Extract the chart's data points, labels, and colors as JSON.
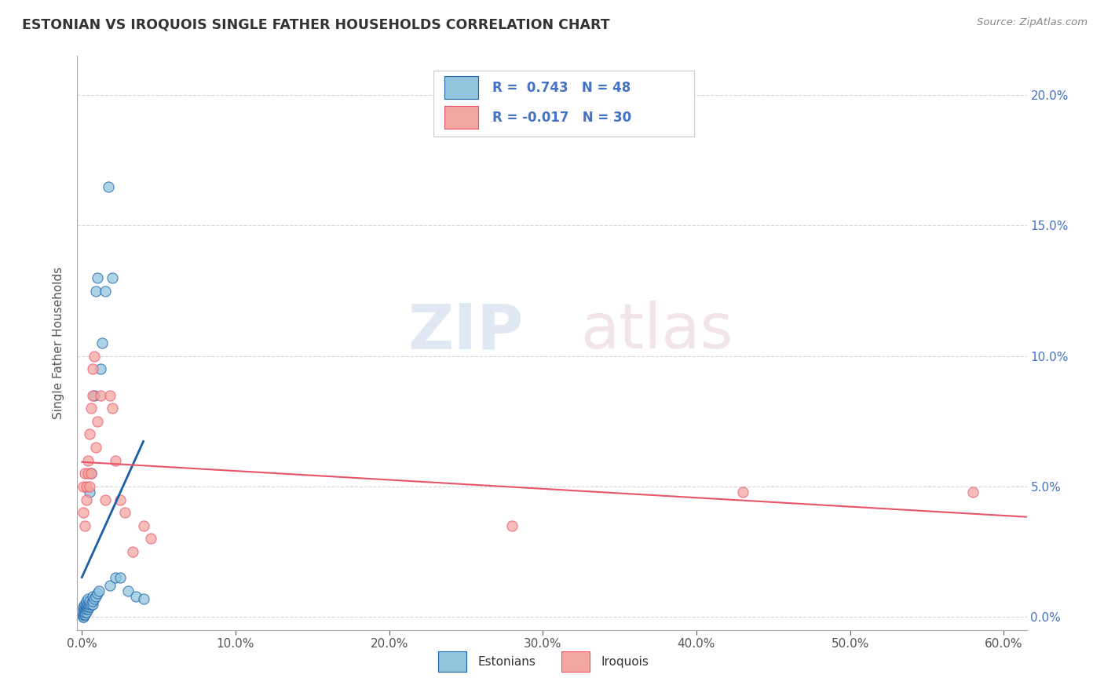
{
  "title": "ESTONIAN VS IROQUOIS SINGLE FATHER HOUSEHOLDS CORRELATION CHART",
  "source": "Source: ZipAtlas.com",
  "ylabel": "Single Father Households",
  "xlim": [
    -0.003,
    0.615
  ],
  "ylim": [
    -0.005,
    0.215
  ],
  "xticks": [
    0.0,
    0.1,
    0.2,
    0.3,
    0.4,
    0.5,
    0.6
  ],
  "xticklabels": [
    "0.0%",
    "10.0%",
    "20.0%",
    "30.0%",
    "40.0%",
    "50.0%",
    "60.0%"
  ],
  "yticks": [
    0.0,
    0.05,
    0.1,
    0.15,
    0.2
  ],
  "yticklabels": [
    "0.0%",
    "5.0%",
    "10.0%",
    "15.0%",
    "20.0%"
  ],
  "legend_r_estonian": "R =  0.743",
  "legend_n_estonian": "N = 48",
  "legend_r_iroquois": "R = -0.017",
  "legend_n_iroquois": "N = 30",
  "estonian_color": "#92c5de",
  "iroquois_color": "#f4a6a0",
  "trendline_estonian_color": "#1a5fa8",
  "trendline_iroquois_color": "#e8546a",
  "background_color": "#ffffff",
  "grid_color": "#cccccc",
  "right_tick_color": "#4472c4",
  "estonian_x": [
    0.001,
    0.001,
    0.001,
    0.001,
    0.001,
    0.001,
    0.001,
    0.002,
    0.002,
    0.002,
    0.002,
    0.002,
    0.003,
    0.003,
    0.003,
    0.003,
    0.003,
    0.004,
    0.004,
    0.004,
    0.004,
    0.005,
    0.005,
    0.005,
    0.005,
    0.006,
    0.006,
    0.007,
    0.007,
    0.007,
    0.008,
    0.008,
    0.009,
    0.009,
    0.01,
    0.01,
    0.011,
    0.012,
    0.013,
    0.015,
    0.017,
    0.018,
    0.02,
    0.022,
    0.025,
    0.03,
    0.035,
    0.04
  ],
  "estonian_y": [
    0.0,
    0.0,
    0.001,
    0.001,
    0.002,
    0.003,
    0.004,
    0.001,
    0.002,
    0.003,
    0.004,
    0.005,
    0.002,
    0.003,
    0.004,
    0.005,
    0.006,
    0.003,
    0.004,
    0.005,
    0.007,
    0.004,
    0.005,
    0.006,
    0.048,
    0.005,
    0.055,
    0.005,
    0.006,
    0.008,
    0.007,
    0.085,
    0.008,
    0.125,
    0.009,
    0.13,
    0.01,
    0.095,
    0.105,
    0.125,
    0.165,
    0.012,
    0.13,
    0.015,
    0.015,
    0.01,
    0.008,
    0.007
  ],
  "iroquois_x": [
    0.001,
    0.001,
    0.002,
    0.002,
    0.003,
    0.003,
    0.004,
    0.004,
    0.005,
    0.005,
    0.006,
    0.006,
    0.007,
    0.007,
    0.008,
    0.009,
    0.01,
    0.012,
    0.015,
    0.018,
    0.02,
    0.022,
    0.025,
    0.028,
    0.033,
    0.04,
    0.045,
    0.28,
    0.43,
    0.58
  ],
  "iroquois_y": [
    0.04,
    0.05,
    0.035,
    0.055,
    0.045,
    0.05,
    0.055,
    0.06,
    0.05,
    0.07,
    0.055,
    0.08,
    0.085,
    0.095,
    0.1,
    0.065,
    0.075,
    0.085,
    0.045,
    0.085,
    0.08,
    0.06,
    0.045,
    0.04,
    0.025,
    0.035,
    0.03,
    0.035,
    0.048,
    0.048
  ]
}
